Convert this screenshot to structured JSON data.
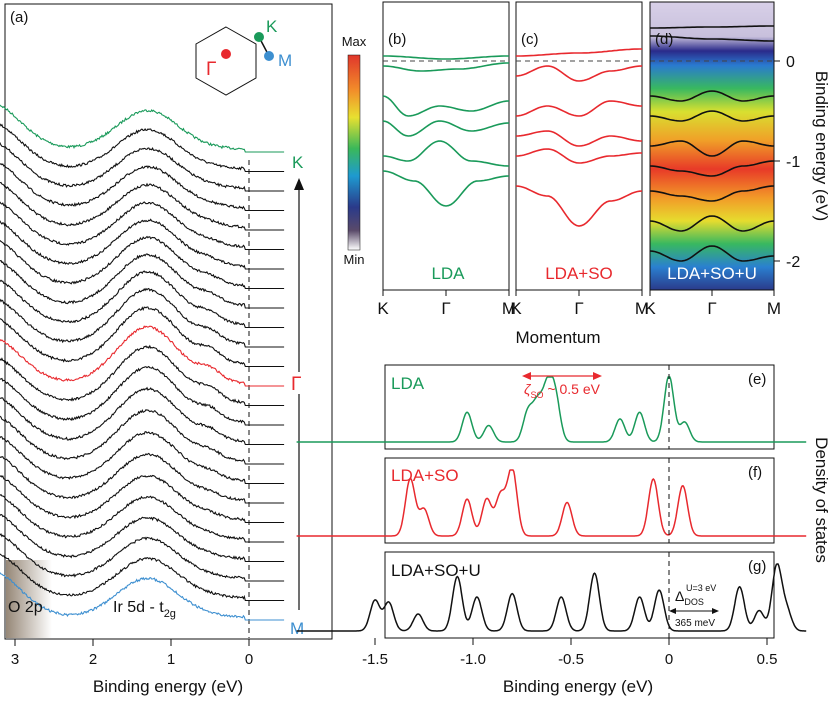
{
  "colors": {
    "green": "#1a9a5a",
    "red": "#e8292e",
    "blue": "#3d8fd0",
    "black": "#111111"
  },
  "chart_data": [
    {
      "panel": "(a)",
      "type": "line",
      "title": "",
      "xlabel": "Binding energy (eV)",
      "ylabel": "",
      "xlim": [
        3.3,
        -0.3
      ],
      "x_ticks": [
        "3",
        "2",
        "1",
        "0"
      ],
      "x_tick_values": [
        3,
        2,
        1,
        0
      ],
      "n_curves": 25,
      "highlight": [
        {
          "index": 0,
          "label": "K",
          "color": "green"
        },
        {
          "index": 12,
          "label": "Γ",
          "color": "red"
        },
        {
          "index": 24,
          "label": "M",
          "color": "blue"
        }
      ],
      "annotations": [
        "O 2p",
        "Ir 5d - t₂g"
      ],
      "bz_labels": [
        "K",
        "M",
        "Γ"
      ]
    },
    {
      "panel": "(b)",
      "type": "line",
      "label": "LDA",
      "color": "green",
      "x_ticks": [
        "K",
        "Γ",
        "M"
      ],
      "bands": [
        {
          "k": [
            0,
            0.5,
            1
          ],
          "e": [
            0.05,
            0.02,
            0.05
          ]
        },
        {
          "k": [
            0,
            0.3,
            0.6,
            1
          ],
          "e": [
            -0.05,
            -0.1,
            -0.08,
            -0.02
          ]
        },
        {
          "k": [
            0,
            0.2,
            0.45,
            0.7,
            1
          ],
          "e": [
            -0.35,
            -0.55,
            -0.45,
            -0.5,
            -0.4
          ]
        },
        {
          "k": [
            0,
            0.2,
            0.45,
            0.7,
            1
          ],
          "e": [
            -0.6,
            -0.75,
            -0.6,
            -0.7,
            -0.62
          ]
        },
        {
          "k": [
            0,
            0.2,
            0.45,
            0.7,
            1
          ],
          "e": [
            -0.95,
            -1.0,
            -0.8,
            -1.0,
            -1.05
          ]
        },
        {
          "k": [
            0,
            0.25,
            0.5,
            0.75,
            1
          ],
          "e": [
            -1.1,
            -1.2,
            -1.45,
            -1.2,
            -1.15
          ]
        }
      ]
    },
    {
      "panel": "(c)",
      "type": "line",
      "label": "LDA+SO",
      "color": "red",
      "x_ticks": [
        "K",
        "Γ",
        "M"
      ],
      "bands": [
        {
          "k": [
            0,
            0.5,
            1
          ],
          "e": [
            0.05,
            0.08,
            0.12
          ]
        },
        {
          "k": [
            0,
            0.25,
            0.5,
            0.75,
            1
          ],
          "e": [
            -0.15,
            -0.05,
            -0.2,
            -0.1,
            -0.05
          ]
        },
        {
          "k": [
            0,
            0.25,
            0.5,
            0.75,
            1
          ],
          "e": [
            -0.55,
            -0.45,
            -0.55,
            -0.4,
            -0.45
          ]
        },
        {
          "k": [
            0,
            0.25,
            0.5,
            0.75,
            1
          ],
          "e": [
            -0.75,
            -0.7,
            -0.85,
            -0.75,
            -0.8
          ]
        },
        {
          "k": [
            0,
            0.25,
            0.5,
            0.75,
            1
          ],
          "e": [
            -0.95,
            -0.88,
            -1.02,
            -0.95,
            -0.92
          ]
        },
        {
          "k": [
            0,
            0.25,
            0.5,
            0.75,
            1
          ],
          "e": [
            -1.25,
            -1.35,
            -1.65,
            -1.4,
            -1.3
          ]
        }
      ]
    },
    {
      "panel": "(d)",
      "type": "heatmap",
      "label": "LDA+SO+U",
      "x_ticks": [
        "K",
        "Γ",
        "M"
      ],
      "ylabel": "Binding energy (eV)",
      "ylim": [
        -2.3,
        0.4
      ],
      "y_ticks": [
        "0",
        "-1",
        "-2"
      ],
      "y_tick_values": [
        0,
        -1,
        -2
      ],
      "colorbar": {
        "max_label": "Max",
        "min_label": "Min"
      },
      "bands": [
        {
          "k": [
            0,
            0.5,
            1
          ],
          "e": [
            0.33,
            0.34,
            0.35
          ]
        },
        {
          "k": [
            0,
            0.5,
            1
          ],
          "e": [
            0.25,
            0.22,
            0.2
          ]
        },
        {
          "k": [
            0,
            0.25,
            0.5,
            0.75,
            1
          ],
          "e": [
            -0.35,
            -0.4,
            -0.3,
            -0.4,
            -0.35
          ]
        },
        {
          "k": [
            0,
            0.25,
            0.5,
            0.75,
            1
          ],
          "e": [
            -0.55,
            -0.6,
            -0.5,
            -0.6,
            -0.55
          ]
        },
        {
          "k": [
            0,
            0.25,
            0.5,
            0.75,
            1
          ],
          "e": [
            -0.85,
            -0.8,
            -0.95,
            -0.8,
            -0.85
          ]
        },
        {
          "k": [
            0,
            0.25,
            0.5,
            0.75,
            1
          ],
          "e": [
            -1.05,
            -1.1,
            -1.15,
            -1.05,
            -1.0
          ]
        },
        {
          "k": [
            0,
            0.25,
            0.5,
            0.75,
            1
          ],
          "e": [
            -1.3,
            -1.35,
            -1.4,
            -1.3,
            -1.25
          ]
        },
        {
          "k": [
            0,
            0.25,
            0.5,
            0.75,
            1
          ],
          "e": [
            -1.6,
            -1.7,
            -1.55,
            -1.7,
            -1.6
          ]
        },
        {
          "k": [
            0,
            0.25,
            0.5,
            0.75,
            1
          ],
          "e": [
            -1.9,
            -2.0,
            -1.85,
            -2.0,
            -1.95
          ]
        }
      ]
    },
    {
      "panel": "(e)",
      "type": "line",
      "label": "LDA",
      "color": "green",
      "xlim": [
        -1.9,
        0.7
      ],
      "annotation": "ζ_SO ~ 0.5 eV",
      "peaks": [
        [
          -1.03,
          0.45
        ],
        [
          -0.92,
          0.25
        ],
        [
          -0.72,
          0.45
        ],
        [
          -0.67,
          0.55
        ],
        [
          -0.62,
          0.75
        ],
        [
          -0.58,
          0.65
        ],
        [
          -0.25,
          0.35
        ],
        [
          -0.15,
          0.45
        ],
        [
          0.0,
          1.0
        ],
        [
          0.08,
          0.3
        ]
      ]
    },
    {
      "panel": "(f)",
      "type": "line",
      "label": "LDA+SO",
      "color": "red",
      "xlim": [
        -1.9,
        0.7
      ],
      "peaks": [
        [
          -1.32,
          0.85
        ],
        [
          -1.25,
          0.4
        ],
        [
          -1.03,
          0.55
        ],
        [
          -0.93,
          0.55
        ],
        [
          -0.86,
          0.6
        ],
        [
          -0.8,
          1.0
        ],
        [
          -0.52,
          0.5
        ],
        [
          -0.08,
          0.85
        ],
        [
          0.07,
          0.75
        ]
      ]
    },
    {
      "panel": "(g)",
      "type": "line",
      "label": "LDA+SO+U",
      "color": "black",
      "xlim": [
        -1.9,
        0.7
      ],
      "x_ticks": [
        "-1.5",
        "-1.0",
        "-0.5",
        "0",
        "0.5"
      ],
      "x_tick_values": [
        -1.5,
        -1.0,
        -0.5,
        0,
        0.5
      ],
      "xlabel": "Binding energy (eV)",
      "ylabel": "Density of states",
      "annotation_gap_label": "Δ",
      "annotation_gap_sub": "DOS",
      "annotation_gap_sup": "U=3 eV",
      "annotation_gap_value": "365 meV",
      "peaks": [
        [
          -1.5,
          0.45
        ],
        [
          -1.43,
          0.42
        ],
        [
          -1.28,
          0.25
        ],
        [
          -1.08,
          0.8
        ],
        [
          -0.98,
          0.5
        ],
        [
          -0.8,
          0.55
        ],
        [
          -0.55,
          0.5
        ],
        [
          -0.38,
          0.85
        ],
        [
          -0.15,
          0.5
        ],
        [
          -0.05,
          0.6
        ],
        [
          0.36,
          0.65
        ],
        [
          0.46,
          0.3
        ],
        [
          0.55,
          0.95
        ],
        [
          0.6,
          0.3
        ]
      ]
    }
  ],
  "labels": {
    "a": "(a)",
    "b": "(b)",
    "c": "(c)",
    "d": "(d)",
    "e": "(e)",
    "f": "(f)",
    "g": "(g)",
    "momentum": "Momentum",
    "bz_K": "K",
    "bz_M": "M",
    "bz_G": "Γ",
    "arrow_K": "K",
    "arrow_G": "Γ",
    "arrow_M": "M",
    "o2p": "O 2p",
    "ir5d": "Ir 5d - t",
    "ir5d_sub": "2g",
    "zeta": "ζ",
    "zeta_sub": "SO",
    "zeta_rest": " ~ 0.5 eV",
    "cb_max": "Max",
    "cb_min": "Min"
  }
}
